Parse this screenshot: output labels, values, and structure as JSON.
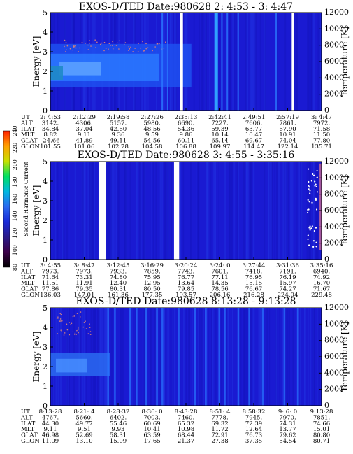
{
  "colors": {
    "background": "#1a1ad2",
    "gap": "#ffffff"
  },
  "colorbar": {
    "label": "Second Harmonic Current",
    "ticks": [
      "80",
      "100",
      "120",
      "140",
      "160",
      "180",
      "200",
      "220",
      "240"
    ],
    "stops": [
      "#000000",
      "#3c0048",
      "#2a1a8a",
      "#1a2ad8",
      "#2a6af0",
      "#00b8e0",
      "#00e060",
      "#c8e000",
      "#ffa000",
      "#ff2000"
    ]
  },
  "chart_data": [
    {
      "type": "heatmap",
      "title": "EXOS-D/TED   Date:980628   2: 4:53 - 3: 4:47",
      "ylabel": "Energy [eV]",
      "y2label": "Temperature [K]",
      "ylim": [
        0,
        5
      ],
      "y2lim": [
        0,
        12000
      ],
      "yticks": [
        "0",
        "1",
        "2",
        "3",
        "4",
        "5"
      ],
      "y2ticks": [
        "0",
        "2000",
        "4000",
        "6000",
        "8000",
        "10000",
        "12000"
      ],
      "gaps": [
        [
          0.478,
          0.489
        ],
        [
          0.89,
          0.897
        ]
      ],
      "orbit_labels": [
        "UT",
        "ALT",
        "ILAT",
        "MLT",
        "GLAT",
        "GLON"
      ],
      "orbit_columns": [
        [
          "2: 4:53",
          "3142.",
          "34.84",
          "8.82",
          "-24.66",
          "101.55"
        ],
        [
          "2:12:29",
          "4306.",
          "37.04",
          "9.11",
          "41.89",
          "101.06"
        ],
        [
          "2:19:58",
          "5157.",
          "42.60",
          "9.36",
          "49.11",
          "102.78"
        ],
        [
          "2:27:26",
          "5980.",
          "48.56",
          "9.59",
          "54.56",
          "104.58"
        ],
        [
          "2:35:13",
          "6690.",
          "54.36",
          "9.86",
          "60.11",
          "106.88"
        ],
        [
          "2:42:41",
          "7227.",
          "59.39",
          "10.14",
          "65.14",
          "109.97"
        ],
        [
          "2:49:51",
          "7606.",
          "63.77",
          "10.47",
          "69.67",
          "114.47"
        ],
        [
          "2:57:19",
          "7861.",
          "67.90",
          "10.91",
          "74.04",
          "122.14"
        ],
        [
          "3: 4:47",
          "7972.",
          "71.58",
          "11.50",
          "77.80",
          "135.71"
        ]
      ]
    },
    {
      "type": "heatmap",
      "title": "EXOS-D/TED   Date:980628   3: 4:55 - 3:35:16",
      "ylabel": "Energy [eV]",
      "y2label": "Temperature [K]",
      "ylim": [
        0,
        5
      ],
      "y2lim": [
        0,
        12000
      ],
      "yticks": [
        "0",
        "1",
        "2",
        "3",
        "4",
        "5"
      ],
      "y2ticks": [
        "0",
        "2000",
        "4000",
        "6000",
        "8000",
        "10000",
        "12000"
      ],
      "gaps": [
        [
          0.18,
          0.204
        ],
        [
          0.456,
          0.475
        ]
      ],
      "orbit_labels": [
        "UT",
        "ALT",
        "ILAT",
        "MLT",
        "GLAT",
        "GLON"
      ],
      "orbit_columns": [
        [
          "3: 4:55",
          "7973.",
          "71.64",
          "11.51",
          "77.86",
          "136.03"
        ],
        [
          "3: 8:47",
          "7973.",
          "73.31",
          "11.91",
          "79.35",
          "147.01"
        ],
        [
          "3:12:45",
          "7933.",
          "74.80",
          "12.40",
          "80.31",
          "161.36"
        ],
        [
          "3:16:29",
          "7859.",
          "75.95",
          "12.95",
          "80.50",
          "177.35"
        ],
        [
          "3:20:24",
          "7743.",
          "76.77",
          "13.64",
          "79.85",
          "193.57"
        ],
        [
          "3:24: 0",
          "7601.",
          "77.11",
          "14.35",
          "78.56",
          "206.16"
        ],
        [
          "3:27:44",
          "7418.",
          "76.95",
          "15.15",
          "76.67",
          "216.28"
        ],
        [
          "3:31:36",
          "7191.",
          "76.19",
          "15.97",
          "74.27",
          "224.04"
        ],
        [
          "3:35:16",
          "6940.",
          "74.92",
          "16.70",
          "71.67",
          "229.48"
        ]
      ]
    },
    {
      "type": "heatmap",
      "title": "EXOS-D/TED   Date:980628   8:13:28 - 9:13:28",
      "ylabel": "Energy [eV]",
      "y2label": "Temperature [K]",
      "ylim": [
        0,
        5
      ],
      "y2lim": [
        0,
        12000
      ],
      "yticks": [
        "0",
        "1",
        "2",
        "3",
        "4",
        "5"
      ],
      "y2ticks": [
        "0",
        "2000",
        "4000",
        "6000",
        "8000",
        "10000",
        "12000"
      ],
      "gaps": [],
      "orbit_labels": [
        "UT",
        "ALT",
        "ILAT",
        "MLT",
        "GLAT",
        "GLON"
      ],
      "orbit_columns": [
        [
          "8:13:28",
          "4767.",
          "44.30",
          "9.11",
          "46.98",
          "11.09"
        ],
        [
          "8:21: 4",
          "5660.",
          "49.77",
          "9.51",
          "52.69",
          "13.10"
        ],
        [
          "8:28:32",
          "6402.",
          "55.46",
          "9.93",
          "58.31",
          "15.09"
        ],
        [
          "8:36: 0",
          "7003.",
          "60.69",
          "10.41",
          "63.59",
          "17.65"
        ],
        [
          "8:43:28",
          "7460.",
          "65.32",
          "10.98",
          "68.44",
          "21.37"
        ],
        [
          "8:51: 4",
          "7778.",
          "69.32",
          "11.72",
          "72.91",
          "27.38"
        ],
        [
          "8:58:32",
          "7945.",
          "72.39",
          "12.64",
          "76.73",
          "37.35"
        ],
        [
          "9: 6: 0",
          "7970.",
          "74.31",
          "13.77",
          "79.62",
          "54.54"
        ],
        [
          "9:13:28",
          "7851.",
          "74.66",
          "15.01",
          "80.80",
          "80.71"
        ]
      ]
    }
  ]
}
